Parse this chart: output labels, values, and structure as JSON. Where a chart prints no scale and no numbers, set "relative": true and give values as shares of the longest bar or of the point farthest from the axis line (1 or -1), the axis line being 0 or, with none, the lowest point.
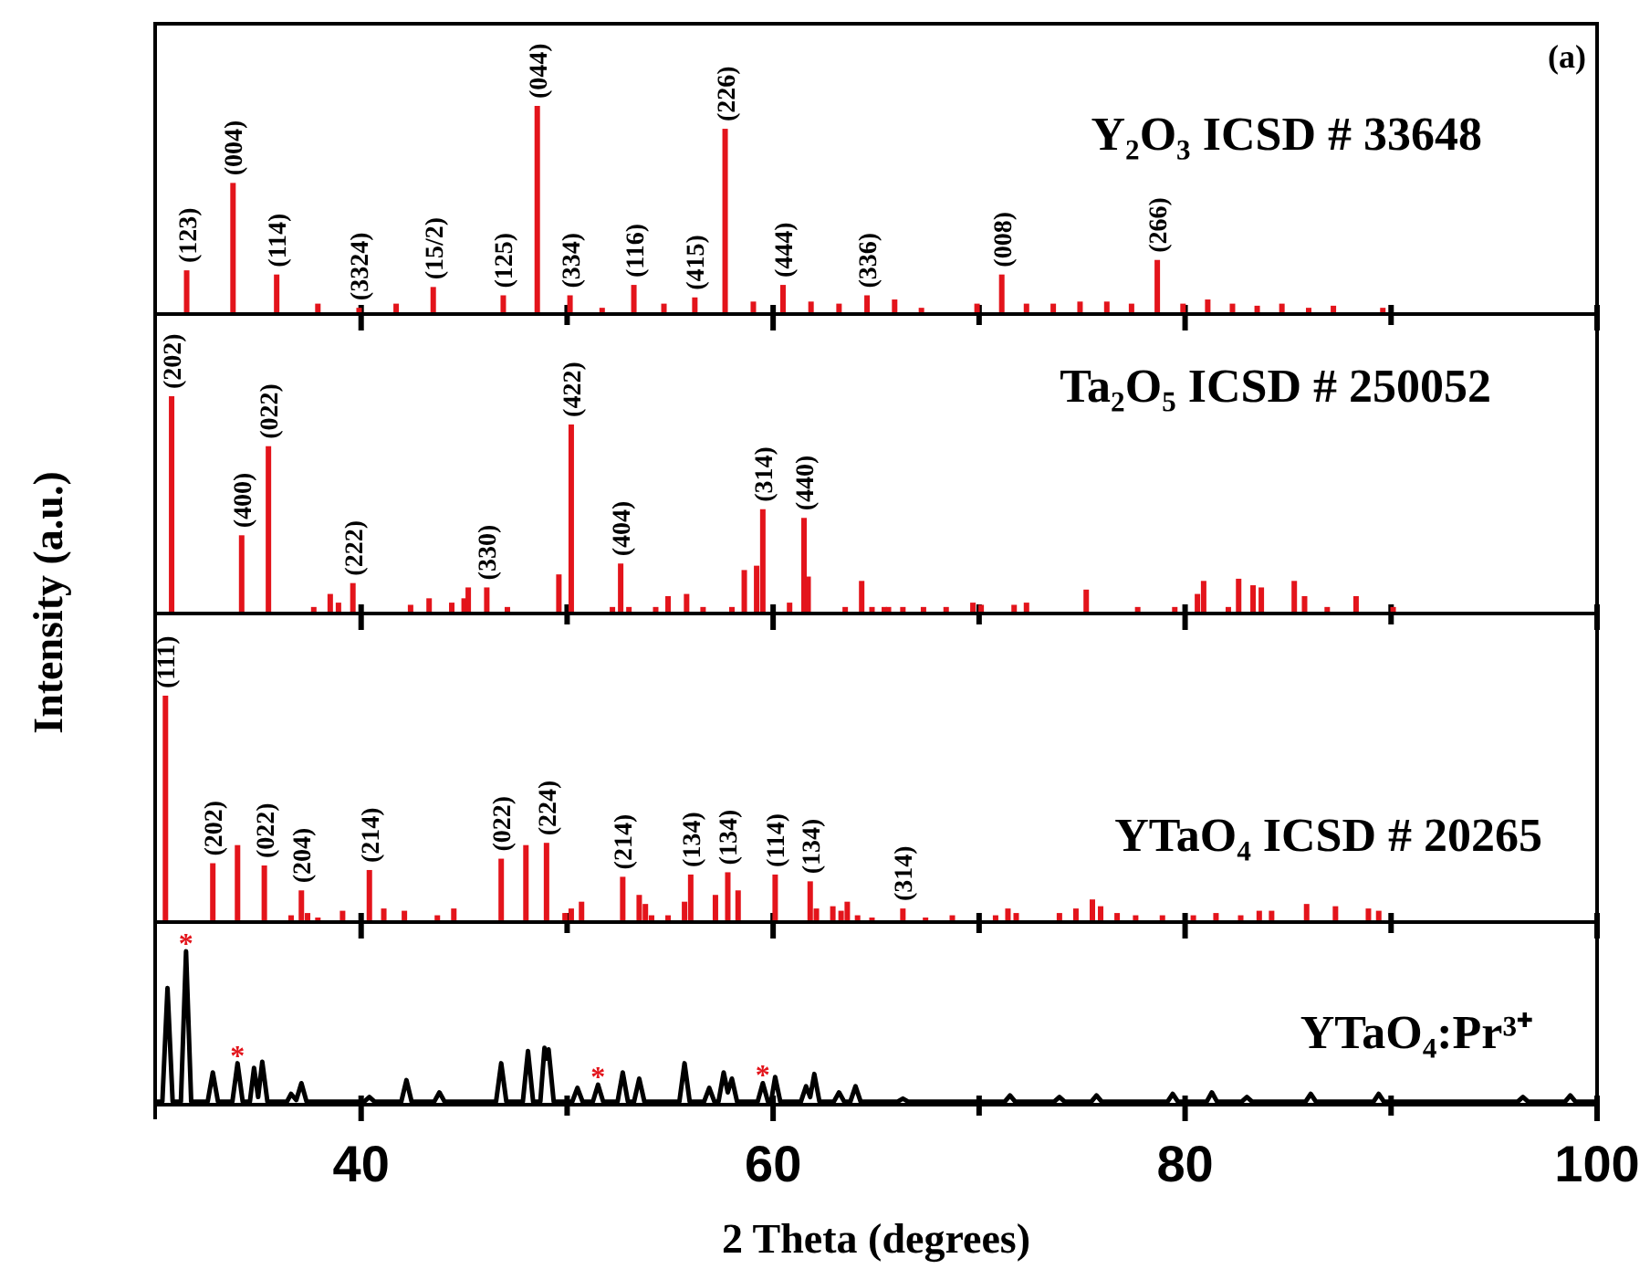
{
  "chart_data": [
    {
      "type": "bar",
      "title": "Y₂O₃  ICSD # 33648",
      "relative": true,
      "color": "#e3141b",
      "tick_labels": false,
      "xlim": [
        30,
        100
      ],
      "xticks": [
        40,
        {
          "value": 50,
          "label": null
        },
        60,
        {
          "value": 70,
          "label": null
        },
        80,
        {
          "value": 90,
          "label": null
        },
        100
      ],
      "x": [
        31.53,
        33.78,
        35.9,
        37.9,
        39.9,
        41.7,
        43.5,
        46.9,
        48.55,
        50.14,
        51.7,
        53.24,
        54.7,
        56.2,
        57.67,
        59.04,
        60.48,
        61.84,
        63.2,
        64.56,
        65.9,
        67.2,
        69.9,
        71.1,
        72.3,
        73.6,
        74.9,
        76.2,
        77.4,
        78.65,
        79.9,
        81.1,
        82.3,
        83.5,
        84.7,
        86.0,
        87.2,
        89.6
      ],
      "values": [
        0.21,
        0.63,
        0.19,
        0.05,
        0.03,
        0.05,
        0.13,
        0.09,
        1,
        0.09,
        0.03,
        0.14,
        0.05,
        0.08,
        0.89,
        0.06,
        0.14,
        0.06,
        0.05,
        0.09,
        0.07,
        0.03,
        0.05,
        0.19,
        0.05,
        0.05,
        0.06,
        0.06,
        0.05,
        0.26,
        0.05,
        0.07,
        0.05,
        0.04,
        0.05,
        0.03,
        0.04,
        0.03
      ],
      "annotations": [
        "(a)",
        {
          "text": "(123)",
          "x": 31.53,
          "y": 0.21
        },
        {
          "text": "(004)",
          "x": 33.78,
          "y": 0.63
        },
        {
          "text": "(114)",
          "x": 35.9,
          "y": 0.19
        },
        {
          "text": "(3324)",
          "x": 39.9,
          "y": 0.03
        },
        {
          "text": "(15/2)",
          "x": 43.5,
          "y": 0.13
        },
        {
          "text": "(125)",
          "x": 46.9,
          "y": 0.09
        },
        {
          "text": "(044)",
          "x": 48.55,
          "y": 1
        },
        {
          "text": "(334)",
          "x": 50.14,
          "y": 0.09
        },
        {
          "text": "(116)",
          "x": 53.24,
          "y": 0.14
        },
        {
          "text": "(415)",
          "x": 56.2,
          "y": 0.08
        },
        {
          "text": "(226)",
          "x": 57.67,
          "y": 0.89
        },
        {
          "text": "(444)",
          "x": 60.48,
          "y": 0.14
        },
        {
          "text": "(336)",
          "x": 64.56,
          "y": 0.09
        },
        {
          "text": "(008)",
          "x": 71.1,
          "y": 0.19
        },
        {
          "text": "(266)",
          "x": 78.65,
          "y": 0.26
        }
      ]
    },
    {
      "type": "bar",
      "title": "Ta₂O₅ ICSD # 250052",
      "ylabel": "Intensity (a.u.)",
      "relative": true,
      "color": "#e3141b",
      "tick_labels": false,
      "xlim": [
        30,
        100
      ],
      "xticks": [
        40,
        {
          "value": 50,
          "label": null
        },
        60,
        {
          "value": 70,
          "label": null
        },
        80,
        {
          "value": 90,
          "label": null
        },
        100
      ],
      "x": [
        30.8,
        34.2,
        35.5,
        37.7,
        38.5,
        38.9,
        39.6,
        42.4,
        43.3,
        44.4,
        45.0,
        45.2,
        46.1,
        47.1,
        49.6,
        50.2,
        52.2,
        52.6,
        53.0,
        54.3,
        54.9,
        55.8,
        56.6,
        58.0,
        58.6,
        59.2,
        59.5,
        60.8,
        61.5,
        61.7,
        63.5,
        64.3,
        64.8,
        65.4,
        65.6,
        66.3,
        67.3,
        68.4,
        69.7,
        70.1,
        71.7,
        72.3,
        75.2,
        77.7,
        79.5,
        80.6,
        80.9,
        82.1,
        82.6,
        83.3,
        83.7,
        85.3,
        85.8,
        86.9,
        88.3,
        90.1
      ],
      "values": [
        1,
        0.36,
        0.77,
        0.03,
        0.09,
        0.05,
        0.14,
        0.04,
        0.07,
        0.05,
        0.07,
        0.12,
        0.12,
        0.03,
        0.18,
        0.87,
        0.03,
        0.23,
        0.03,
        0.03,
        0.08,
        0.09,
        0.03,
        0.03,
        0.2,
        0.22,
        0.48,
        0.05,
        0.44,
        0.17,
        0.03,
        0.15,
        0.03,
        0.03,
        0.03,
        0.03,
        0.03,
        0.03,
        0.05,
        0.04,
        0.04,
        0.05,
        0.11,
        0.03,
        0.03,
        0.09,
        0.15,
        0.03,
        0.16,
        0.13,
        0.12,
        0.15,
        0.08,
        0.03,
        0.08,
        0.03
      ],
      "annotations": [
        {
          "text": "(202)",
          "x": 30.8,
          "y": 1
        },
        {
          "text": "(400)",
          "x": 34.2,
          "y": 0.36
        },
        {
          "text": "(022)",
          "x": 35.5,
          "y": 0.77
        },
        {
          "text": "(222)",
          "x": 39.6,
          "y": 0.14
        },
        {
          "text": "(330)",
          "x": 46.1,
          "y": 0.12
        },
        {
          "text": "(422)",
          "x": 50.2,
          "y": 0.87
        },
        {
          "text": "(404)",
          "x": 52.6,
          "y": 0.23
        },
        {
          "text": "(314)",
          "x": 59.5,
          "y": 0.48
        },
        {
          "text": "(440)",
          "x": 61.5,
          "y": 0.44
        }
      ]
    },
    {
      "type": "bar",
      "title": "YTaO₄ ICSD # 20265",
      "relative": true,
      "color": "#e3141b",
      "tick_labels": false,
      "xlim": [
        30,
        100
      ],
      "xticks": [
        40,
        {
          "value": 50,
          "label": null
        },
        60,
        {
          "value": 70,
          "label": null
        },
        80,
        {
          "value": 90,
          "label": null
        },
        100
      ],
      "x": [
        30.5,
        32.8,
        34.0,
        35.3,
        36.6,
        37.1,
        37.4,
        37.9,
        39.1,
        40.4,
        41.1,
        42.1,
        43.7,
        44.5,
        46.8,
        48.0,
        49.0,
        49.9,
        50.2,
        50.7,
        52.7,
        53.5,
        53.8,
        54.1,
        54.9,
        55.7,
        56.0,
        57.2,
        57.8,
        58.3,
        60.1,
        61.8,
        62.1,
        62.9,
        63.3,
        63.6,
        64.1,
        64.8,
        66.3,
        67.4,
        68.7,
        70.8,
        71.4,
        71.8,
        73.9,
        74.7,
        75.5,
        75.9,
        76.7,
        77.6,
        78.9,
        80.4,
        81.5,
        82.7,
        83.6,
        84.2,
        85.9,
        87.3,
        88.9,
        89.4
      ],
      "values": [
        1,
        0.26,
        0.34,
        0.25,
        0.03,
        0.14,
        0.04,
        0.02,
        0.05,
        0.23,
        0.06,
        0.05,
        0.03,
        0.06,
        0.28,
        0.34,
        0.35,
        0.04,
        0.06,
        0.09,
        0.2,
        0.12,
        0.08,
        0.03,
        0.03,
        0.09,
        0.21,
        0.12,
        0.22,
        0.14,
        0.21,
        0.18,
        0.06,
        0.07,
        0.05,
        0.09,
        0.03,
        0.02,
        0.06,
        0.02,
        0.03,
        0.03,
        0.06,
        0.04,
        0.04,
        0.06,
        0.1,
        0.07,
        0.04,
        0.03,
        0.03,
        0.03,
        0.04,
        0.03,
        0.05,
        0.05,
        0.08,
        0.07,
        0.06,
        0.05
      ],
      "annotations": [
        {
          "text": "(111)",
          "x": 30.5,
          "y": 1
        },
        {
          "text": "(202)",
          "x": 32.8,
          "y": 0.26
        },
        {
          "text": "(022)",
          "x": 35.3,
          "y": 0.25
        },
        {
          "text": "(204)",
          "x": 37.1,
          "y": 0.14
        },
        {
          "text": "(214)",
          "x": 40.4,
          "y": 0.23
        },
        {
          "text": "(022)",
          "x": 46.8,
          "y": 0.28
        },
        {
          "text": "(224)",
          "x": 49.0,
          "y": 0.35
        },
        {
          "text": "(214)",
          "x": 52.7,
          "y": 0.2
        },
        {
          "text": "(134)",
          "x": 56.0,
          "y": 0.21
        },
        {
          "text": "(134)",
          "x": 57.8,
          "y": 0.22
        },
        {
          "text": "(114)",
          "x": 60.1,
          "y": 0.21
        },
        {
          "text": "(134)",
          "x": 61.8,
          "y": 0.18
        },
        {
          "text": "(314)",
          "x": 66.3,
          "y": 0.06
        }
      ]
    },
    {
      "type": "line",
      "title": "YTaO₄:Pr³⁺",
      "xlabel": "2 Theta (degrees)",
      "relative": true,
      "color": "#000000",
      "marker": "none",
      "tick_labels": "x",
      "xlim": [
        30,
        100
      ],
      "xticks": [
        40,
        {
          "value": 50,
          "label": null
        },
        60,
        {
          "value": 70,
          "label": null
        },
        80,
        {
          "value": 90,
          "label": null
        },
        100
      ],
      "x": [
        30,
        30.35,
        30.6,
        30.85,
        31.25,
        31.5,
        31.75,
        32.55,
        32.8,
        33.05,
        33.75,
        34.0,
        34.25,
        34.6,
        34.8,
        35.0,
        35.2,
        35.45,
        36.4,
        36.6,
        36.85,
        37.1,
        37.35,
        40.15,
        40.4,
        40.65,
        41.95,
        42.2,
        42.45,
        43.55,
        43.8,
        44.05,
        46.55,
        46.8,
        47.05,
        47.85,
        48.1,
        48.35,
        48.7,
        48.9,
        49.0,
        49.1,
        49.35,
        50.25,
        50.5,
        50.75,
        51.25,
        51.5,
        51.75,
        52.45,
        52.7,
        52.95,
        53.25,
        53.5,
        53.75,
        55.45,
        55.7,
        55.95,
        56.65,
        56.9,
        57.15,
        57.35,
        57.6,
        57.8,
        58.0,
        58.25,
        59.25,
        59.5,
        59.75,
        59.9,
        60.1,
        60.35,
        61.35,
        61.6,
        61.8,
        62.0,
        62.25,
        62.95,
        63.2,
        63.45,
        63.75,
        64.0,
        64.25,
        66.05,
        66.3,
        66.55,
        71.25,
        71.5,
        71.75,
        73.65,
        73.9,
        74.15,
        75.45,
        75.7,
        75.95,
        79.15,
        79.4,
        79.65,
        81.05,
        81.3,
        81.55,
        82.75,
        83.0,
        83.25,
        85.85,
        86.1,
        86.35,
        89.15,
        89.4,
        89.65,
        96.15,
        96.4,
        96.65,
        98.45,
        98.7,
        98.95,
        100
      ],
      "values": [
        0.02,
        0.02,
        0.76,
        0.02,
        0.02,
        1,
        0.02,
        0.02,
        0.21,
        0.02,
        0.02,
        0.27,
        0.02,
        0.02,
        0.24,
        0.05,
        0.28,
        0.02,
        0.02,
        0.07,
        0.03,
        0.14,
        0.02,
        0.02,
        0.05,
        0.02,
        0.02,
        0.16,
        0.02,
        0.02,
        0.08,
        0.02,
        0.02,
        0.27,
        0.02,
        0.02,
        0.35,
        0.02,
        0.02,
        0.37,
        0.3,
        0.36,
        0.02,
        0.02,
        0.11,
        0.02,
        0.02,
        0.13,
        0.02,
        0.02,
        0.21,
        0.02,
        0.02,
        0.17,
        0.02,
        0.02,
        0.27,
        0.02,
        0.02,
        0.11,
        0.02,
        0.02,
        0.21,
        0.08,
        0.17,
        0.02,
        0.02,
        0.14,
        0.02,
        0.02,
        0.18,
        0.02,
        0.02,
        0.12,
        0.05,
        0.2,
        0.02,
        0.02,
        0.08,
        0.02,
        0.02,
        0.12,
        0.02,
        0.02,
        0.04,
        0.02,
        0.02,
        0.06,
        0.02,
        0.02,
        0.05,
        0.02,
        0.02,
        0.06,
        0.02,
        0.02,
        0.07,
        0.02,
        0.02,
        0.08,
        0.02,
        0.02,
        0.05,
        0.02,
        0.02,
        0.07,
        0.02,
        0.02,
        0.07,
        0.02,
        0.02,
        0.05,
        0.02,
        0.02,
        0.06,
        0.02,
        0.02
      ],
      "annotations": [
        {
          "text": "*",
          "x": 31.5,
          "y": 1
        },
        {
          "text": "*",
          "x": 34.0,
          "y": 0.27
        },
        {
          "text": "*",
          "x": 51.5,
          "y": 0.13
        },
        {
          "text": "*",
          "x": 59.5,
          "y": 0.14
        }
      ]
    }
  ]
}
